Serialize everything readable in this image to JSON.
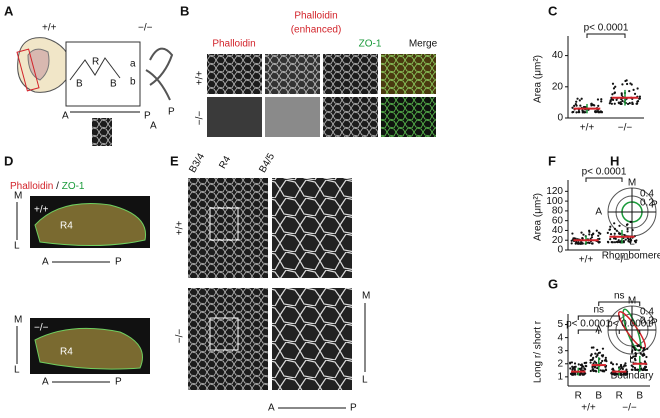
{
  "panels": {
    "A": {
      "label": "A",
      "wt": "+/+",
      "mut": "−/−",
      "left": "B",
      "mid": "R",
      "right": "B",
      "a": "a",
      "b": "b",
      "ant": "A",
      "post": "P",
      "ant2": "A",
      "post2": "P"
    },
    "B": {
      "label": "B",
      "col1": "Phalloidin",
      "col2a": "Phalloidin",
      "col2b": "(enhanced)",
      "col3": "ZO-1",
      "col4": "Merge",
      "row1": "+/+",
      "row2": "−/−"
    },
    "D": {
      "label": "D",
      "stain1": "Phalloidin",
      "sep": " / ",
      "stain2": "ZO-1",
      "wt": "+/+",
      "mut": "−/−",
      "r1": "R4",
      "r2": "R4",
      "m1": "M",
      "l1": "L",
      "a1": "A",
      "p1": "P",
      "m2": "M",
      "l2": "L",
      "a2": "A",
      "p2": "P"
    },
    "E": {
      "label": "E",
      "b34": "B3/4",
      "r4": "R4",
      "b45": "B4/5",
      "row1": "+/+",
      "row2": "−/−",
      "m": "M",
      "l": "L",
      "a": "A",
      "p": "P"
    },
    "H": {
      "label": "H",
      "m1": "M",
      "v1a": "0.4",
      "v1b": "0.2",
      "a1": "A",
      "p1": "P",
      "l1": "L",
      "name1": "Rhombomere",
      "m2": "M",
      "v2a": "0.4",
      "v2b": "0.2",
      "a2": "A",
      "p2": "P",
      "l2": "L",
      "name2": "Boundary"
    }
  },
  "chart_data": [
    {
      "type": "scatter",
      "label": "C",
      "y_label": "Area (μm²)",
      "categories": [
        "+/+",
        "−/−"
      ],
      "values": [
        6,
        13
      ],
      "errors": [
        3,
        5
      ],
      "ylim": [
        0,
        50
      ],
      "yticks": [
        0,
        20,
        40
      ],
      "annotations": [
        "p< 0.0001"
      ]
    },
    {
      "type": "scatter",
      "label": "F",
      "y_label": "Area (μm²)",
      "categories": [
        "+/+",
        "−/−"
      ],
      "values": [
        20,
        27
      ],
      "errors": [
        9,
        14
      ],
      "ylim": [
        0,
        135
      ],
      "yticks": [
        0,
        20,
        40,
        60,
        80,
        100,
        120
      ],
      "annotations": [
        "p< 0.0001"
      ]
    },
    {
      "type": "scatter",
      "label": "G",
      "y_label": "Long r/ short r",
      "categories": [
        "R",
        "B",
        "R",
        "B"
      ],
      "groups": [
        "+/+",
        "−/−"
      ],
      "values": [
        1.4,
        1.9,
        1.4,
        2.0
      ],
      "errors": [
        0.3,
        0.6,
        0.3,
        0.6
      ],
      "ylim": [
        0.3,
        5.5
      ],
      "yticks": [
        1,
        2,
        3,
        4,
        5
      ],
      "annotations": [
        "p< 0.0001",
        "p< 0.0001",
        "ns",
        "ns"
      ]
    }
  ]
}
